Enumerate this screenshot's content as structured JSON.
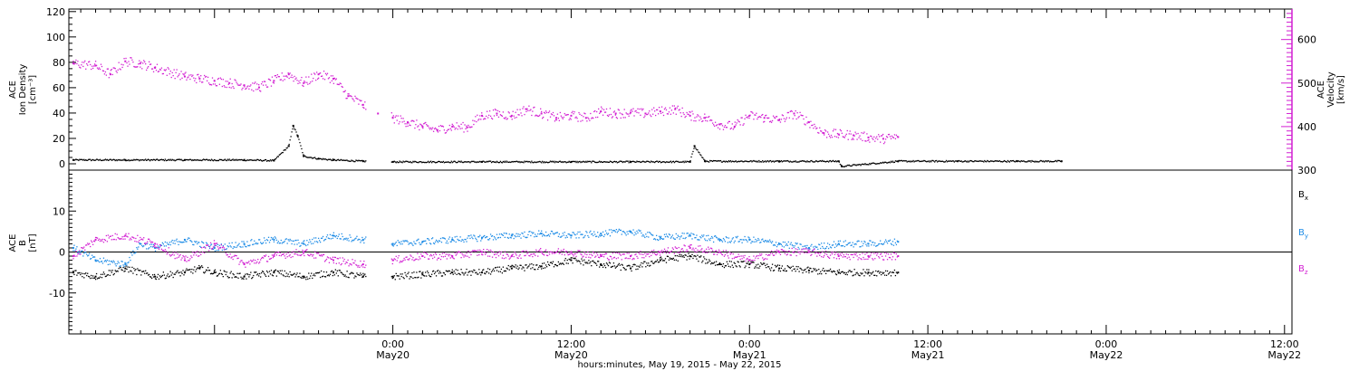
{
  "colors": {
    "black": "#000000",
    "magenta": "#d21fd2",
    "blue": "#1e8ce6"
  },
  "chart_data": [
    {
      "type": "scatter",
      "panel": "top",
      "ylabel_left": [
        "ACE",
        "Ion Density",
        "[cm⁻³]"
      ],
      "ylabel_right": [
        "ACE",
        "Velocity",
        "[km/s]"
      ],
      "ylim_left": [
        -5,
        122
      ],
      "ylim_right": [
        300,
        670
      ],
      "yticks_left": [
        0,
        20,
        40,
        60,
        80,
        100,
        120
      ],
      "yticks_right": [
        300,
        400,
        500,
        600
      ],
      "x_unit": "hours since 0:00 May 19, 2015",
      "xlim": [
        2.2,
        84.5
      ],
      "data_gap": [
        22.2,
        23.9
      ],
      "series": [
        {
          "key": "density",
          "color": "#000000",
          "axis": "left",
          "points": [
            [
              2.5,
              3
            ],
            [
              6,
              3
            ],
            [
              10,
              3
            ],
            [
              14,
              3
            ],
            [
              16,
              2.5
            ],
            [
              17,
              14
            ],
            [
              17.3,
              30
            ],
            [
              17.6,
              22
            ],
            [
              18,
              6
            ],
            [
              19,
              4
            ],
            [
              20,
              3
            ],
            [
              22,
              2
            ],
            [
              24,
              1.5
            ],
            [
              30,
              1.5
            ],
            [
              36,
              1.5
            ],
            [
              40,
              1.5
            ],
            [
              44,
              1.5
            ],
            [
              44.3,
              14
            ],
            [
              45,
              2
            ],
            [
              50,
              2
            ],
            [
              54,
              2
            ],
            [
              54.2,
              -2
            ],
            [
              58,
              2
            ],
            [
              62,
              2
            ],
            [
              66,
              2
            ],
            [
              69,
              2
            ]
          ]
        },
        {
          "key": "velocity",
          "color": "#d21fd2",
          "axis": "right",
          "points": [
            [
              2.5,
              545
            ],
            [
              4,
              540
            ],
            [
              5,
              520
            ],
            [
              6,
              550
            ],
            [
              7,
              545
            ],
            [
              8,
              535
            ],
            [
              10,
              515
            ],
            [
              11,
              510
            ],
            [
              12,
              505
            ],
            [
              13,
              500
            ],
            [
              14,
              495
            ],
            [
              15,
              490
            ],
            [
              16,
              505
            ],
            [
              17,
              520
            ],
            [
              18,
              500
            ],
            [
              19,
              520
            ],
            [
              20,
              510
            ],
            [
              21,
              470
            ],
            [
              22,
              450
            ],
            [
              23,
              430
            ],
            [
              24,
              420
            ],
            [
              25,
              410
            ],
            [
              26,
              400
            ],
            [
              27,
              392
            ],
            [
              28,
              400
            ],
            [
              29,
              398
            ],
            [
              30,
              425
            ],
            [
              31,
              430
            ],
            [
              32,
              425
            ],
            [
              33,
              440
            ],
            [
              34,
              430
            ],
            [
              35,
              420
            ],
            [
              36,
              425
            ],
            [
              37,
              420
            ],
            [
              38,
              435
            ],
            [
              39,
              430
            ],
            [
              40,
              432
            ],
            [
              41,
              430
            ],
            [
              42,
              435
            ],
            [
              43,
              440
            ],
            [
              44,
              425
            ],
            [
              45,
              420
            ],
            [
              46,
              405
            ],
            [
              47,
              400
            ],
            [
              48,
              425
            ],
            [
              49,
              420
            ],
            [
              50,
              415
            ],
            [
              51,
              430
            ],
            [
              52,
              410
            ],
            [
              53,
              385
            ],
            [
              54,
              382
            ],
            [
              55,
              380
            ],
            [
              56,
              375
            ],
            [
              57,
              372
            ],
            [
              58,
              376
            ]
          ]
        }
      ]
    },
    {
      "type": "scatter",
      "panel": "bottom",
      "ylabel_left": [
        "ACE",
        "B",
        "[nT]"
      ],
      "ylim": [
        -20,
        20
      ],
      "yticks": [
        -10,
        0,
        10
      ],
      "legend": [
        "Bx",
        "By",
        "Bz"
      ],
      "legend_placement": "right",
      "series": [
        {
          "key": "Bx",
          "name": "Bx",
          "color": "#000000",
          "points": [
            [
              2.5,
              -5
            ],
            [
              4,
              -6
            ],
            [
              6,
              -4
            ],
            [
              8,
              -6
            ],
            [
              10,
              -5
            ],
            [
              11,
              -4
            ],
            [
              12,
              -5
            ],
            [
              14,
              -6
            ],
            [
              16,
              -5
            ],
            [
              18,
              -6
            ],
            [
              20,
              -5
            ],
            [
              22,
              -6
            ],
            [
              24,
              -6
            ],
            [
              26,
              -5.5
            ],
            [
              28,
              -5
            ],
            [
              30,
              -5
            ],
            [
              32,
              -4
            ],
            [
              34,
              -3.5
            ],
            [
              36,
              -2
            ],
            [
              38,
              -3
            ],
            [
              40,
              -4
            ],
            [
              42,
              -2
            ],
            [
              44,
              -1
            ],
            [
              46,
              -3
            ],
            [
              48,
              -3
            ],
            [
              50,
              -4
            ],
            [
              52,
              -4.5
            ],
            [
              54,
              -5
            ],
            [
              56,
              -5
            ],
            [
              58,
              -5
            ]
          ]
        },
        {
          "key": "By",
          "name": "By",
          "color": "#1e8ce6",
          "points": [
            [
              2.5,
              1
            ],
            [
              4,
              -2
            ],
            [
              6,
              -3
            ],
            [
              7,
              2
            ],
            [
              8,
              1
            ],
            [
              10,
              3
            ],
            [
              12,
              1
            ],
            [
              14,
              2
            ],
            [
              16,
              3
            ],
            [
              18,
              2
            ],
            [
              20,
              4
            ],
            [
              22,
              3
            ],
            [
              24,
              2
            ],
            [
              26,
              2.5
            ],
            [
              28,
              3
            ],
            [
              30,
              3.5
            ],
            [
              32,
              4
            ],
            [
              34,
              4.5
            ],
            [
              36,
              4
            ],
            [
              38,
              4.5
            ],
            [
              40,
              5
            ],
            [
              42,
              3.5
            ],
            [
              44,
              4
            ],
            [
              46,
              3
            ],
            [
              48,
              3
            ],
            [
              50,
              2
            ],
            [
              52,
              1
            ],
            [
              54,
              2
            ],
            [
              56,
              2
            ],
            [
              58,
              2.5
            ]
          ]
        },
        {
          "key": "Bz",
          "name": "Bz",
          "color": "#d21fd2",
          "points": [
            [
              2.5,
              -1
            ],
            [
              4,
              3
            ],
            [
              6,
              4
            ],
            [
              8,
              2
            ],
            [
              10,
              -2
            ],
            [
              12,
              2
            ],
            [
              14,
              -3
            ],
            [
              16,
              -1
            ],
            [
              18,
              0
            ],
            [
              20,
              -2
            ],
            [
              22,
              -3
            ],
            [
              24,
              -2
            ],
            [
              26,
              -1
            ],
            [
              28,
              -1
            ],
            [
              30,
              0
            ],
            [
              32,
              -1
            ],
            [
              34,
              0
            ],
            [
              36,
              0
            ],
            [
              38,
              -1
            ],
            [
              40,
              -1
            ],
            [
              42,
              0
            ],
            [
              44,
              1
            ],
            [
              46,
              0
            ],
            [
              48,
              -2
            ],
            [
              50,
              0
            ],
            [
              52,
              0
            ],
            [
              54,
              -1
            ],
            [
              56,
              -1
            ],
            [
              58,
              -1
            ]
          ]
        }
      ]
    }
  ],
  "x_axis": {
    "title": "hours:minutes, May 19, 2015 - May 22, 2015",
    "ticks": [
      {
        "time": "0:00",
        "date": "May20"
      },
      {
        "time": "12:00",
        "date": "May20"
      },
      {
        "time": "0:00",
        "date": "May21"
      },
      {
        "time": "12:00",
        "date": "May21"
      },
      {
        "time": "0:00",
        "date": "May22"
      },
      {
        "time": "12:00",
        "date": "May22"
      }
    ]
  }
}
